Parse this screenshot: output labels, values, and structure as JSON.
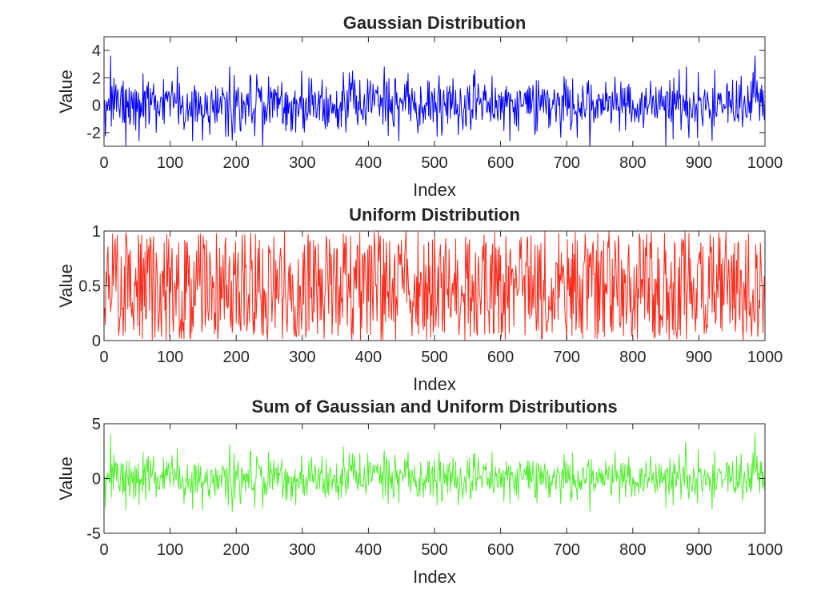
{
  "chart_data": [
    {
      "type": "line",
      "title": "Gaussian Distribution",
      "xlabel": "Index",
      "ylabel": "Value",
      "xlim": [
        0,
        1000
      ],
      "ylim": [
        -3,
        5
      ],
      "xticks": [
        0,
        100,
        200,
        300,
        400,
        500,
        600,
        700,
        800,
        900,
        1000
      ],
      "yticks": [
        -2,
        0,
        2,
        4
      ],
      "color": "#0000ff",
      "series": [
        {
          "distribution": "gaussian",
          "n": 1000,
          "mean": 0,
          "std": 1,
          "approx_min": -3.1,
          "approx_max": 3.7,
          "key_points": [
            [
              10,
              3.6
            ],
            [
              33,
              -3.0
            ],
            [
              240,
              -3.0
            ],
            [
              735,
              -3.1
            ],
            [
              850,
              -3.0
            ],
            [
              985,
              3.6
            ]
          ]
        }
      ]
    },
    {
      "type": "line",
      "title": "Uniform Distribution",
      "xlabel": "Index",
      "ylabel": "Value",
      "xlim": [
        0,
        1000
      ],
      "ylim": [
        0,
        1
      ],
      "xticks": [
        0,
        100,
        200,
        300,
        400,
        500,
        600,
        700,
        800,
        900,
        1000
      ],
      "yticks": [
        0,
        0.5,
        1
      ],
      "color": "#ff2a1a",
      "series": [
        {
          "distribution": "uniform",
          "n": 1000,
          "low": 0,
          "high": 1
        }
      ]
    },
    {
      "type": "line",
      "title": "Sum of Gaussian and Uniform Distributions",
      "xlabel": "Index",
      "ylabel": "Value",
      "xlim": [
        0,
        1000
      ],
      "ylim": [
        -5,
        5
      ],
      "xticks": [
        0,
        100,
        200,
        300,
        400,
        500,
        600,
        700,
        800,
        900,
        1000
      ],
      "yticks": [
        -5,
        0,
        5
      ],
      "color": "#55ee33",
      "series": [
        {
          "distribution": "gaussian + uniform",
          "n": 1000,
          "approx_min": -3.0,
          "approx_max": 4.2,
          "key_points": [
            [
              10,
              4.0
            ],
            [
              33,
              -2.9
            ],
            [
              735,
              -3.0
            ],
            [
              880,
              3.3
            ],
            [
              985,
              4.2
            ]
          ]
        }
      ]
    }
  ]
}
